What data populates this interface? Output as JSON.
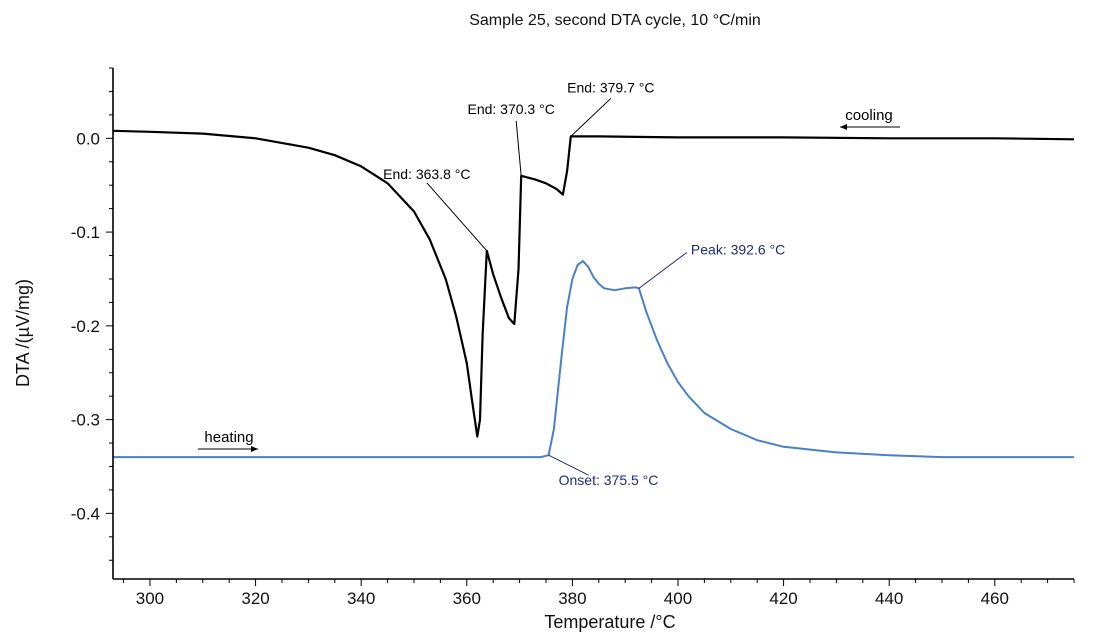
{
  "chart_data": {
    "type": "line",
    "title": "Sample 25, second DTA cycle, 10 °C/min",
    "xlabel": "Temperature /°C",
    "ylabel": "DTA /(µV/mg)",
    "xlim": [
      293,
      475
    ],
    "ylim": [
      -0.47,
      0.075
    ],
    "x_ticks": [
      300,
      320,
      340,
      360,
      380,
      400,
      420,
      440,
      460
    ],
    "x_tick_labels": [
      "300",
      "320",
      "340",
      "360",
      "380",
      "400",
      "420",
      "440",
      "460"
    ],
    "y_ticks": [
      0.0,
      -0.1,
      -0.2,
      -0.3,
      -0.4
    ],
    "y_tick_labels": [
      "0.0",
      "-0.1",
      "-0.2",
      "-0.3",
      "-0.4"
    ],
    "grid": false,
    "colors": {
      "cooling": "#000000",
      "heating": "#4a7fcb",
      "heating_annotation": "#1f2a7a",
      "axis": "#000000"
    },
    "series": [
      {
        "name": "cooling",
        "color": "#000000",
        "x": [
          293,
          300,
          310,
          320,
          330,
          335,
          340,
          345,
          350,
          353,
          356,
          358,
          360,
          361,
          362,
          362.5,
          363,
          363.8,
          365,
          366.5,
          368,
          369,
          369.8,
          370.3,
          371,
          373,
          375,
          377,
          378.2,
          379,
          379.7,
          385,
          400,
          420,
          440,
          460,
          475
        ],
        "y": [
          0.008,
          0.007,
          0.005,
          0.0,
          -0.01,
          -0.018,
          -0.03,
          -0.048,
          -0.078,
          -0.108,
          -0.15,
          -0.19,
          -0.24,
          -0.28,
          -0.318,
          -0.3,
          -0.21,
          -0.12,
          -0.145,
          -0.17,
          -0.192,
          -0.198,
          -0.14,
          -0.04,
          -0.041,
          -0.044,
          -0.048,
          -0.054,
          -0.06,
          -0.035,
          0.002,
          0.002,
          0.001,
          0.001,
          0.0,
          0.0,
          -0.001
        ]
      },
      {
        "name": "heating",
        "color": "#4a7fcb",
        "x": [
          293,
          320,
          340,
          360,
          370,
          374,
          375.5,
          376.5,
          378,
          379,
          380,
          381,
          382,
          383,
          384,
          385,
          386,
          388,
          390,
          392,
          392.6,
          394,
          396,
          398,
          400,
          402,
          405,
          410,
          415,
          420,
          430,
          440,
          450,
          460,
          475
        ],
        "y": [
          -0.34,
          -0.34,
          -0.34,
          -0.34,
          -0.34,
          -0.34,
          -0.338,
          -0.31,
          -0.23,
          -0.18,
          -0.15,
          -0.135,
          -0.131,
          -0.137,
          -0.148,
          -0.155,
          -0.16,
          -0.162,
          -0.16,
          -0.159,
          -0.16,
          -0.185,
          -0.215,
          -0.24,
          -0.26,
          -0.275,
          -0.293,
          -0.31,
          -0.322,
          -0.329,
          -0.335,
          -0.338,
          -0.34,
          -0.34,
          -0.34
        ]
      }
    ],
    "annotations": [
      {
        "text": "End: 363.8 °C",
        "x": 363.8,
        "y": -0.12,
        "series": "cooling"
      },
      {
        "text": "End: 370.3 °C",
        "x": 370.3,
        "y": -0.04,
        "series": "cooling"
      },
      {
        "text": "End: 379.7 °C",
        "x": 379.7,
        "y": 0.002,
        "series": "cooling"
      },
      {
        "text": "Peak: 392.6 °C",
        "x": 392.6,
        "y": -0.16,
        "series": "heating"
      },
      {
        "text": "Onset: 375.5 °C",
        "x": 375.5,
        "y": -0.338,
        "series": "heating"
      }
    ],
    "direction_labels": [
      {
        "text": "cooling",
        "direction": "left"
      },
      {
        "text": "heating",
        "direction": "right"
      }
    ]
  }
}
